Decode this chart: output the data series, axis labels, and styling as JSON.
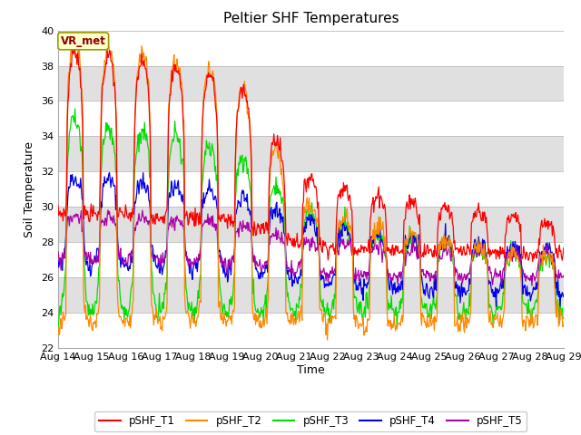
{
  "title": "Peltier SHF Temperatures",
  "xlabel": "Time",
  "ylabel": "Soil Temperature",
  "ylim": [
    22,
    40
  ],
  "yticks": [
    22,
    24,
    26,
    28,
    30,
    32,
    34,
    36,
    38,
    40
  ],
  "xlabels": [
    "Aug 14",
    "Aug 15",
    "Aug 16",
    "Aug 17",
    "Aug 18",
    "Aug 19",
    "Aug 20",
    "Aug 21",
    "Aug 22",
    "Aug 23",
    "Aug 24",
    "Aug 25",
    "Aug 26",
    "Aug 27",
    "Aug 28",
    "Aug 29"
  ],
  "annotation": "VR_met",
  "colors": {
    "pSHF_T1": "#ff0000",
    "pSHF_T2": "#ff8800",
    "pSHF_T3": "#00dd00",
    "pSHF_T4": "#0000ee",
    "pSHF_T5": "#aa00aa"
  },
  "legend_labels": [
    "pSHF_T1",
    "pSHF_T2",
    "pSHF_T3",
    "pSHF_T4",
    "pSHF_T5"
  ],
  "fig_bg_color": "#ffffff",
  "plot_bg_color": "#ffffff",
  "band_color": "#e0e0e0",
  "grid_line_color": "#cccccc",
  "title_fontsize": 11,
  "axis_label_fontsize": 9,
  "tick_fontsize": 8
}
